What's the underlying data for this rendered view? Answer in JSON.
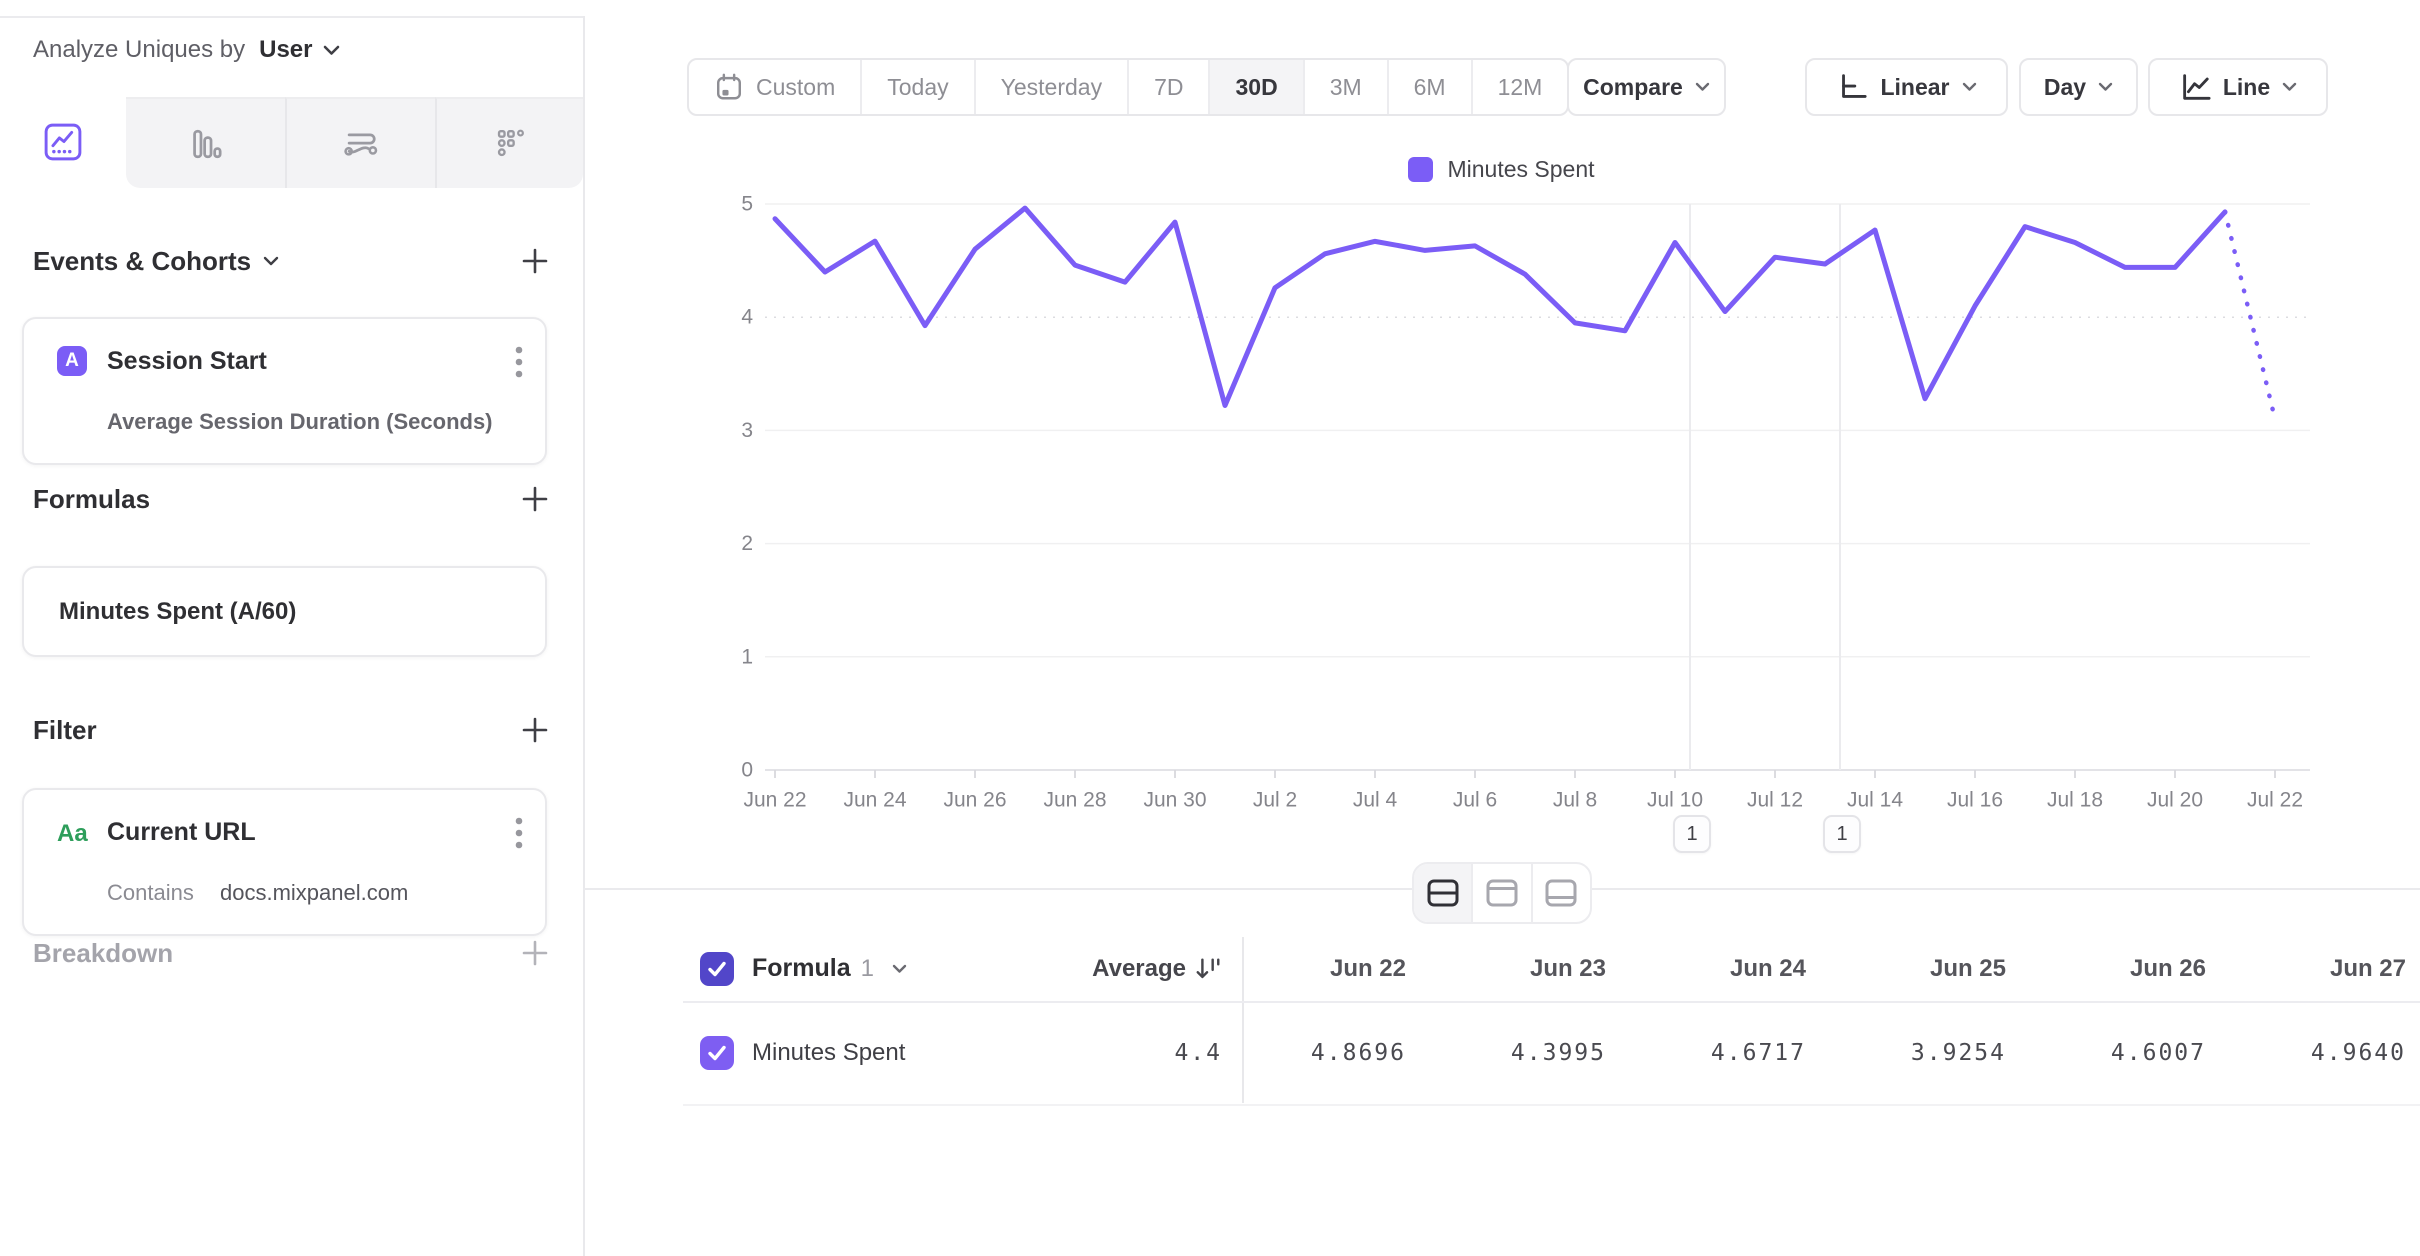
{
  "colors": {
    "accent_purple": "#7B5DF6",
    "checkbox_header": "#5246C9",
    "checkbox_row": "#7E5EF2",
    "green_property": "#2E9E5B"
  },
  "sidebar": {
    "analyze_by_label": "Analyze Uniques by",
    "analyze_by_value": "User",
    "events_section_title": "Events & Cohorts",
    "event_card": {
      "badge": "A",
      "title": "Session Start",
      "subtitle": "Average Session Duration (Seconds)"
    },
    "formulas_section_title": "Formulas",
    "formula_card": {
      "title": "Minutes Spent (A/60)"
    },
    "filter_section_title": "Filter",
    "filter_card": {
      "badge": "Aa",
      "title": "Current URL",
      "operator": "Contains",
      "value": "docs.mixpanel.com"
    },
    "breakdown_section_title": "Breakdown"
  },
  "toolbar": {
    "date_ranges": [
      "Custom",
      "Today",
      "Yesterday",
      "7D",
      "30D",
      "3M",
      "6M",
      "12M"
    ],
    "selected_range": "30D",
    "compare_label": "Compare",
    "scale_label": "Linear",
    "interval_label": "Day",
    "chart_type_label": "Line"
  },
  "chart_data": {
    "type": "line",
    "legend": [
      {
        "name": "Minutes Spent",
        "color": "#7B5DF6"
      }
    ],
    "x": [
      "Jun 22",
      "Jun 23",
      "Jun 24",
      "Jun 25",
      "Jun 26",
      "Jun 27",
      "Jun 28",
      "Jun 29",
      "Jun 30",
      "Jul 1",
      "Jul 2",
      "Jul 3",
      "Jul 4",
      "Jul 5",
      "Jul 6",
      "Jul 7",
      "Jul 8",
      "Jul 9",
      "Jul 10",
      "Jul 11",
      "Jul 12",
      "Jul 13",
      "Jul 14",
      "Jul 15",
      "Jul 16",
      "Jul 17",
      "Jul 18",
      "Jul 19",
      "Jul 20",
      "Jul 21",
      "Jul 22"
    ],
    "series": [
      {
        "name": "Minutes Spent",
        "color": "#7B5DF6",
        "values": [
          4.8696,
          4.3995,
          4.6717,
          3.9254,
          4.6007,
          4.964,
          4.46,
          4.31,
          4.84,
          3.22,
          4.26,
          4.56,
          4.67,
          4.59,
          4.63,
          4.38,
          3.95,
          3.88,
          4.66,
          4.05,
          4.53,
          4.47,
          4.77,
          3.28,
          4.1,
          4.8,
          4.66,
          4.44,
          4.44,
          4.93,
          3.1
        ],
        "last_segment_dotted": true
      }
    ],
    "ylim": [
      0,
      5
    ],
    "y_ticks": [
      0,
      1,
      2,
      3,
      4,
      5
    ],
    "x_tick_step": 2,
    "grid": "horizontal",
    "legend_position": "top-center",
    "annotations": [
      {
        "label": "1",
        "day_index": 18.3
      },
      {
        "label": "1",
        "day_index": 21.3
      }
    ]
  },
  "table": {
    "header": {
      "group": "Formula",
      "group_index": "1",
      "average": "Average"
    },
    "columns": [
      "Jun 22",
      "Jun 23",
      "Jun 24",
      "Jun 25",
      "Jun 26",
      "Jun 27"
    ],
    "rows": [
      {
        "label": "Minutes Spent",
        "average": "4.4",
        "values": [
          "4.8696",
          "4.3995",
          "4.6717",
          "3.9254",
          "4.6007",
          "4.9640"
        ]
      }
    ]
  }
}
